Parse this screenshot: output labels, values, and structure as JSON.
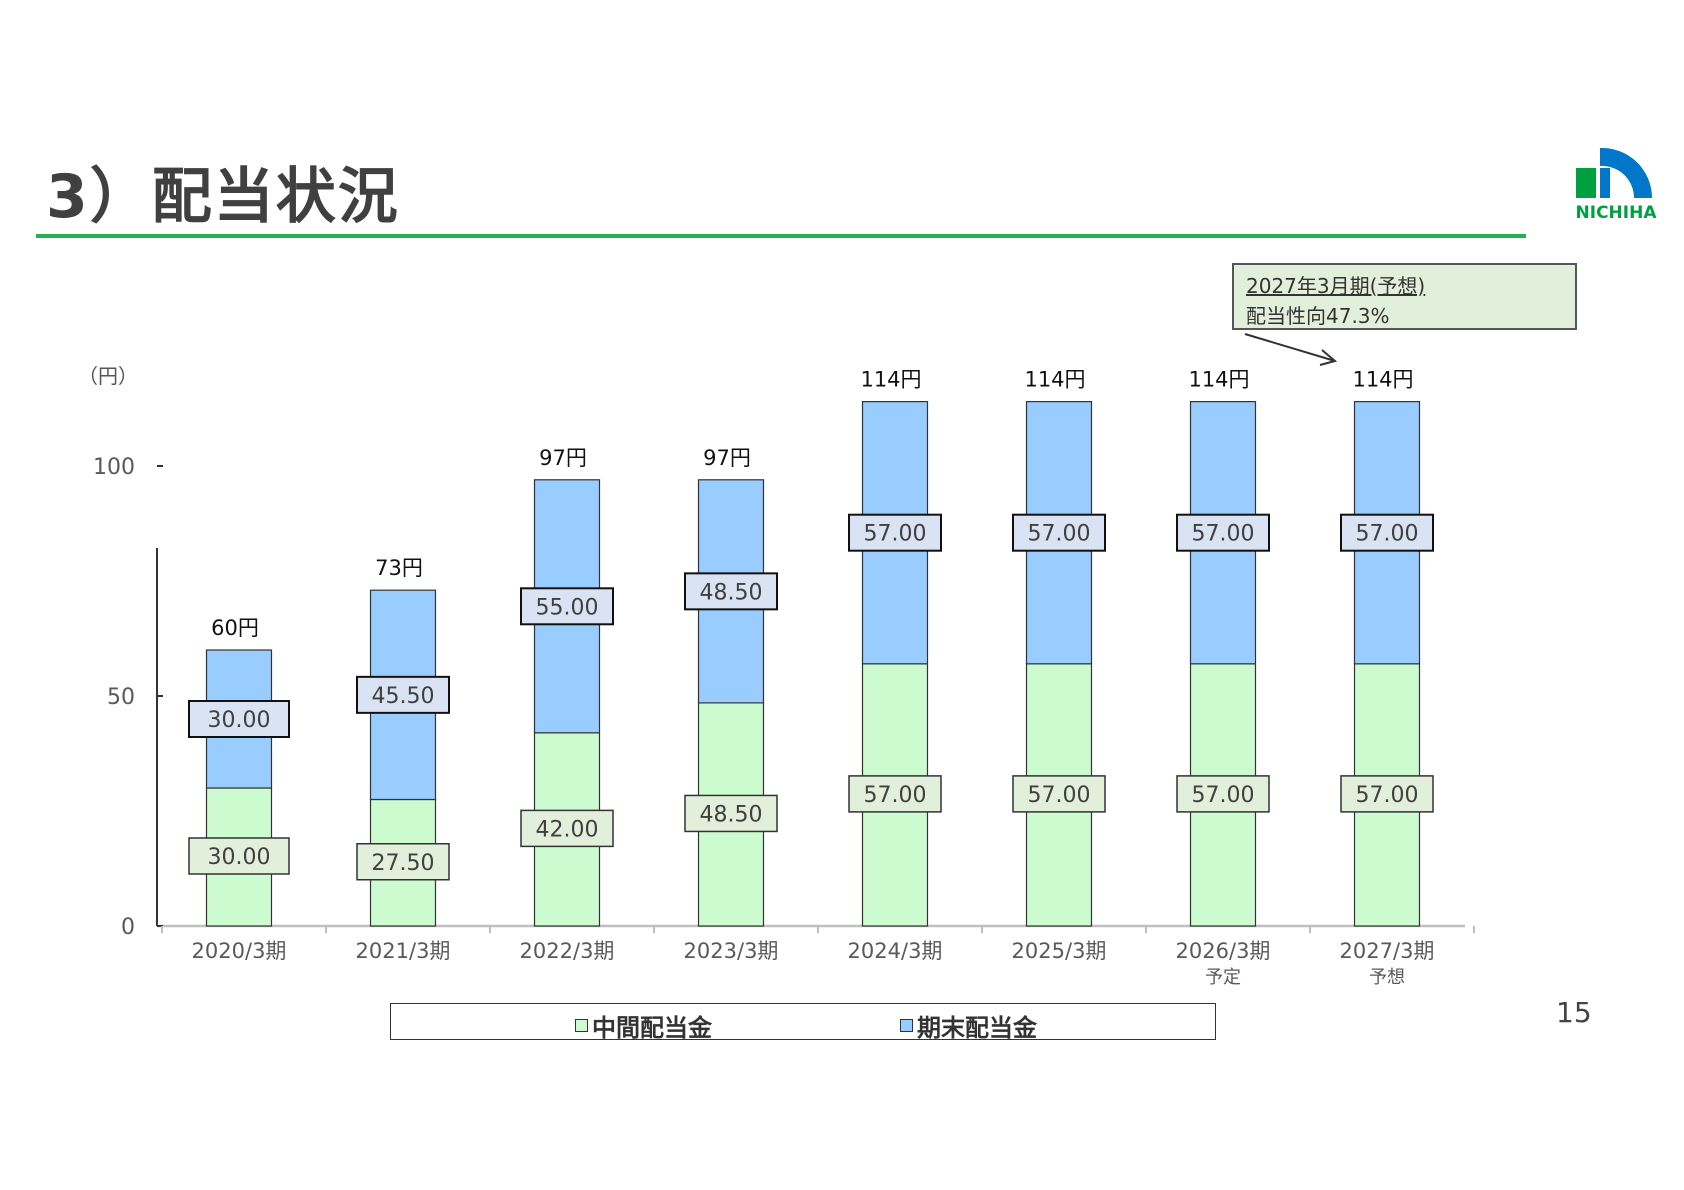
{
  "page": {
    "title": "3）配当状況",
    "page_number": "15",
    "logo_text": "NICHIHA"
  },
  "callout": {
    "line1": "2027年3月期(予想)",
    "line2": "配当性向47.3%"
  },
  "colors": {
    "interim": "#ccfbd0",
    "year_end": "#99ccff",
    "interim_label_bg": "#e2efda",
    "year_end_label_bg": "#dae3f3",
    "accent_green": "#22b14c",
    "logo_blue": "#0077c8",
    "logo_green": "#00a040"
  },
  "chart_data": {
    "type": "bar",
    "stacked": true,
    "y_unit_label": "（円）",
    "ylim": [
      0,
      120
    ],
    "yticks": [
      0,
      50,
      100
    ],
    "categories": [
      "2020/3期",
      "2021/3期",
      "2022/3期",
      "2023/3期",
      "2024/3期",
      "2025/3期",
      "2026/3期",
      "2027/3期"
    ],
    "category_sublabels": [
      "",
      "",
      "",
      "",
      "",
      "",
      "予定",
      "予想"
    ],
    "series": [
      {
        "name": "中間配当金",
        "values": [
          30.0,
          27.5,
          42.0,
          48.5,
          57.0,
          57.0,
          57.0,
          57.0
        ],
        "labels": [
          "30.00",
          "27.50",
          "42.00",
          "48.50",
          "57.00",
          "57.00",
          "57.00",
          "57.00"
        ]
      },
      {
        "name": "期末配当金",
        "values": [
          30.0,
          45.5,
          55.0,
          48.5,
          57.0,
          57.0,
          57.0,
          57.0
        ],
        "labels": [
          "30.00",
          "45.50",
          "55.00",
          "48.50",
          "57.00",
          "57.00",
          "57.00",
          "57.00"
        ]
      }
    ],
    "totals": [
      60,
      73,
      97,
      97,
      114,
      114,
      114,
      114
    ],
    "total_labels": [
      "60円",
      "73円",
      "97円",
      "97円",
      "114円",
      "114円",
      "114円",
      "114円"
    ],
    "legend_position": "bottom",
    "grid": false
  }
}
